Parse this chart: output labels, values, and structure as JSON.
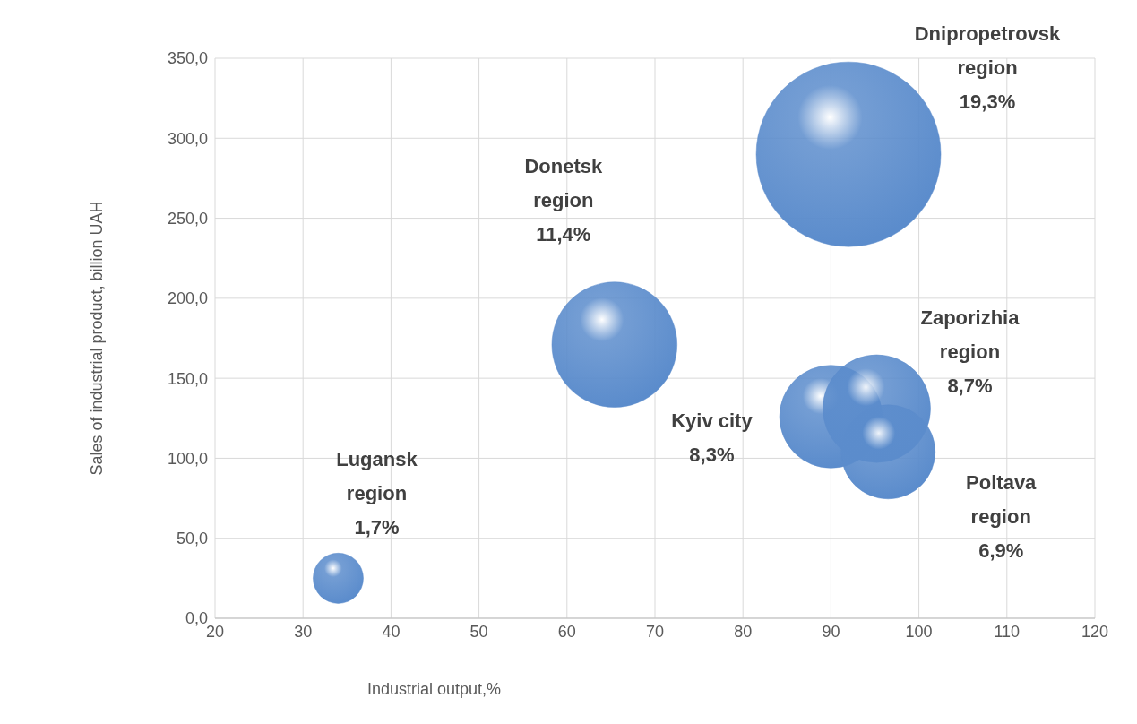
{
  "chart_data": {
    "type": "bubble",
    "xlabel": "Industrial output,%",
    "ylabel": "Sales of industrial product, billion UAH",
    "x": [
      34,
      65.4,
      92,
      90,
      95.2,
      96.5
    ],
    "values": [
      25,
      171,
      290,
      126,
      131,
      104
    ],
    "sizes": [
      0.074,
      0.46,
      1,
      0.31,
      0.34,
      0.26
    ],
    "value_labels": [
      "Lugansk\nregion\n1,7%",
      "Donetsk\nregion\n11,4%",
      "Dnipropetrovsk\nregion\n19,3%",
      "Kyiv city\n8,3%",
      "Zaporizhia\nregion\n8,7%",
      "Poltava\nregion\n6,9%"
    ],
    "color": "#5b8ccc",
    "xlim": [
      20,
      120
    ],
    "xticks": [
      20,
      30,
      40,
      50,
      60,
      70,
      80,
      90,
      100,
      110,
      120
    ],
    "ylim": [
      0,
      350
    ],
    "yticks": [
      {
        "value": 0,
        "label": "0,0"
      },
      {
        "value": 50,
        "label": "50,0"
      },
      {
        "value": 100,
        "label": "100,0"
      },
      {
        "value": 150,
        "label": "150,0"
      },
      {
        "value": 200,
        "label": "200,0"
      },
      {
        "value": 250,
        "label": "250,0"
      },
      {
        "value": 300,
        "label": "300,0"
      },
      {
        "value": 350,
        "label": "350,0"
      }
    ],
    "grid": true
  }
}
